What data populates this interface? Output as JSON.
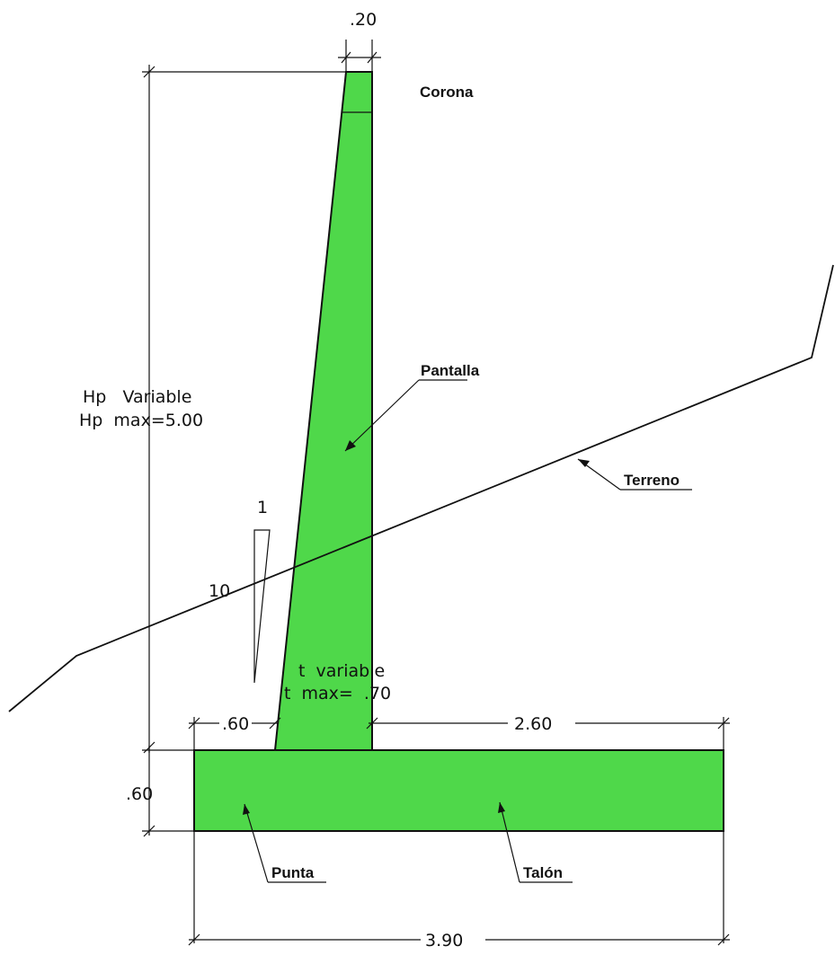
{
  "colors": {
    "concrete": "#4fd84a",
    "line": "#111111",
    "background": "#ffffff"
  },
  "dimensions": {
    "crest_width": ".20",
    "height_line1": "Hp   Variable",
    "height_line2": "Hp  max=5.00",
    "thickness_line1": "t  variable",
    "thickness_line2": "t  max=  .70",
    "toe_width": ".60",
    "heel_width": "2.60",
    "footing_height": ".60",
    "base_width": "3.90"
  },
  "slope": {
    "rise": "1",
    "run": "10"
  },
  "labels": {
    "corona": "Corona",
    "pantalla": "Pantalla",
    "terreno": "Terreno",
    "punta": "Punta",
    "talon": "Talón"
  }
}
